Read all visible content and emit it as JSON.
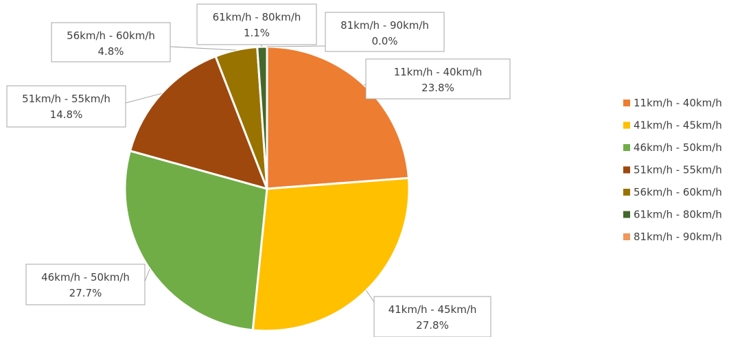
{
  "chart_data": {
    "type": "pie",
    "title": "",
    "categories": [
      "11km/h - 40km/h",
      "41km/h - 45km/h",
      "46km/h - 50km/h",
      "51km/h - 55km/h",
      "56km/h - 60km/h",
      "61km/h - 80km/h",
      "81km/h - 90km/h"
    ],
    "values": [
      23.8,
      27.8,
      27.7,
      14.8,
      4.8,
      1.1,
      0.0
    ],
    "value_labels": [
      "23.8%",
      "27.8%",
      "27.7%",
      "14.8%",
      "4.8%",
      "1.1%",
      "0.0%"
    ],
    "colors": [
      "#ED7D31",
      "#FFC000",
      "#70AD47",
      "#9E480E",
      "#997300",
      "#43682B",
      "#F1975A"
    ],
    "legend_placement": "right",
    "data_labels": "callouts with category name and percent"
  }
}
